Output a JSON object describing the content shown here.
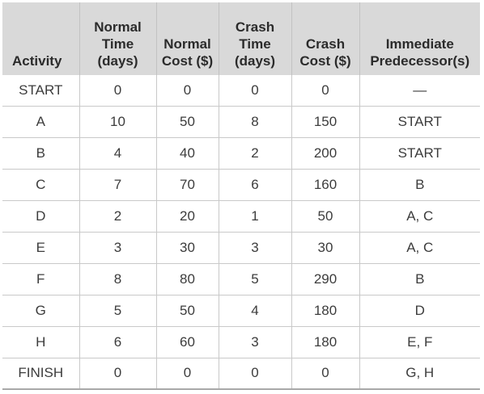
{
  "table": {
    "headers": [
      {
        "lines": [
          "Activity"
        ]
      },
      {
        "lines": [
          "Normal",
          "Time",
          "(days)"
        ]
      },
      {
        "lines": [
          "Normal",
          "Cost ($)"
        ]
      },
      {
        "lines": [
          "Crash",
          "Time",
          "(days)"
        ]
      },
      {
        "lines": [
          "Crash",
          "Cost ($)"
        ]
      },
      {
        "lines": [
          "Immediate",
          "Predecessor(s)"
        ]
      }
    ],
    "rows": [
      {
        "activity": "START",
        "normal_time": "0",
        "normal_cost": "0",
        "crash_time": "0",
        "crash_cost": "0",
        "predecessors": "—"
      },
      {
        "activity": "A",
        "normal_time": "10",
        "normal_cost": "50",
        "crash_time": "8",
        "crash_cost": "150",
        "predecessors": "START"
      },
      {
        "activity": "B",
        "normal_time": "4",
        "normal_cost": "40",
        "crash_time": "2",
        "crash_cost": "200",
        "predecessors": "START"
      },
      {
        "activity": "C",
        "normal_time": "7",
        "normal_cost": "70",
        "crash_time": "6",
        "crash_cost": "160",
        "predecessors": "B"
      },
      {
        "activity": "D",
        "normal_time": "2",
        "normal_cost": "20",
        "crash_time": "1",
        "crash_cost": "50",
        "predecessors": "A, C"
      },
      {
        "activity": "E",
        "normal_time": "3",
        "normal_cost": "30",
        "crash_time": "3",
        "crash_cost": "30",
        "predecessors": "A, C"
      },
      {
        "activity": "F",
        "normal_time": "8",
        "normal_cost": "80",
        "crash_time": "5",
        "crash_cost": "290",
        "predecessors": "B"
      },
      {
        "activity": "G",
        "normal_time": "5",
        "normal_cost": "50",
        "crash_time": "4",
        "crash_cost": "180",
        "predecessors": "D"
      },
      {
        "activity": "H",
        "normal_time": "6",
        "normal_cost": "60",
        "crash_time": "3",
        "crash_cost": "180",
        "predecessors": "E, F"
      },
      {
        "activity": "FINISH",
        "normal_time": "0",
        "normal_cost": "0",
        "crash_time": "0",
        "crash_cost": "0",
        "predecessors": "G, H"
      }
    ]
  },
  "colors": {
    "header_background": "#d9d9d9",
    "grid_lines": "#c9c9c9",
    "text": "#3c3c3c"
  }
}
